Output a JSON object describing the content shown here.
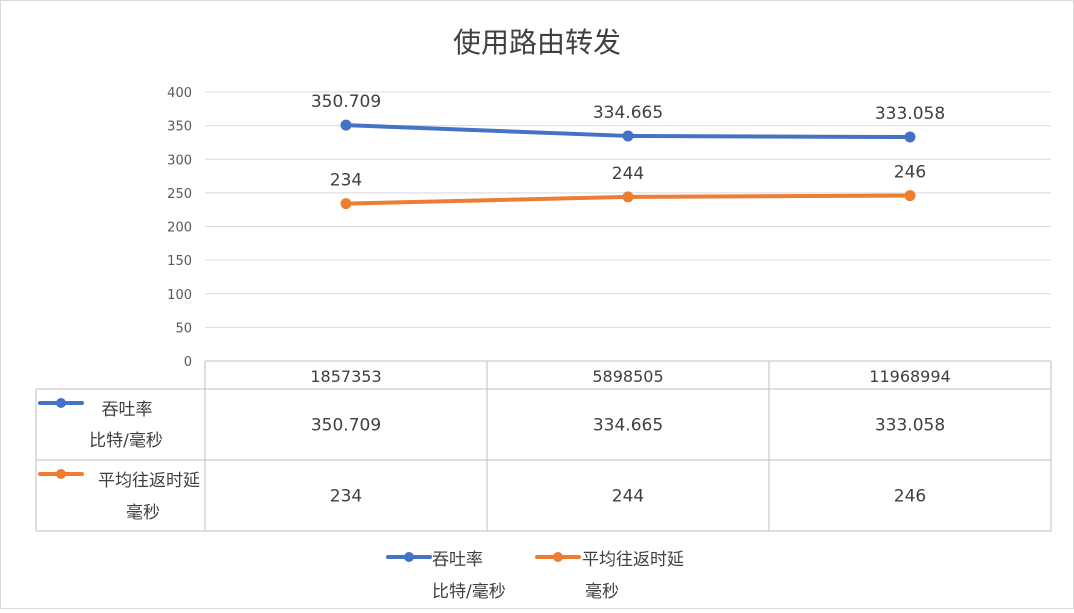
{
  "chart_data": {
    "type": "line",
    "title": "使用路由转发",
    "categories": [
      "1857353",
      "5898505",
      "11968994"
    ],
    "ylim": [
      0,
      400
    ],
    "yticks": [
      "0",
      "50",
      "100",
      "150",
      "200",
      "250",
      "300",
      "350",
      "400"
    ],
    "grid": true,
    "legend_position": "bottom",
    "data_table": true,
    "series": [
      {
        "name_line1": "吞吐率",
        "name_line2": "比特/毫秒",
        "color": "#4472c4",
        "values": [
          350.709,
          334.665,
          333.058
        ],
        "labels": [
          "350.709",
          "334.665",
          "333.058"
        ]
      },
      {
        "name_line1": "平均往返时延",
        "name_line2": "毫秒",
        "color": "#ed7d31",
        "values": [
          234,
          244,
          246
        ],
        "labels": [
          "234",
          "244",
          "246"
        ]
      }
    ]
  }
}
